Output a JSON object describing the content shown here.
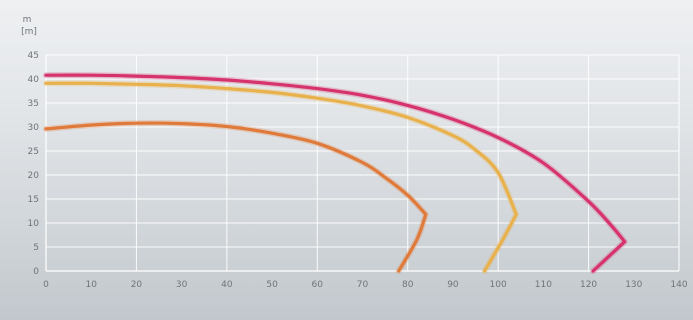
{
  "chart_data": {
    "type": "line",
    "title": "",
    "y_axis_label_top": "m",
    "y_axis_unit": "[m]",
    "x_tick_labels": [
      "0",
      "10",
      "20",
      "30",
      "40",
      "50",
      "60",
      "70",
      "80",
      "90",
      "100",
      "110",
      "120",
      "130",
      "140"
    ],
    "y_tick_labels": [
      "0",
      "5",
      "10",
      "15",
      "20",
      "25",
      "30",
      "35",
      "40",
      "45"
    ],
    "xlim": [
      0,
      140
    ],
    "ylim": [
      0,
      45
    ],
    "grid": true,
    "series": [
      {
        "color": "#d6336c",
        "x": [
          0,
          10,
          20,
          30,
          40,
          50,
          60,
          70,
          80,
          90,
          100,
          110,
          120,
          125,
          128,
          125,
          121
        ],
        "y": [
          40.8,
          40.8,
          40.6,
          40.3,
          39.8,
          39.0,
          38.0,
          36.6,
          34.5,
          31.6,
          27.8,
          22.5,
          14.5,
          9.5,
          6.1,
          3.5,
          0
        ]
      },
      {
        "color": "#e9b14c",
        "x": [
          0,
          10,
          20,
          30,
          40,
          50,
          60,
          70,
          80,
          90,
          95,
          100,
          104,
          101,
          97
        ],
        "y": [
          39.1,
          39.1,
          38.9,
          38.6,
          38.0,
          37.2,
          36.0,
          34.4,
          32.0,
          28.2,
          25.2,
          20.5,
          11.8,
          6.5,
          0
        ]
      },
      {
        "color": "#e07a3a",
        "x": [
          0,
          10,
          20,
          30,
          40,
          50,
          60,
          70,
          75,
          80,
          84,
          82,
          78
        ],
        "y": [
          29.6,
          30.4,
          30.8,
          30.7,
          30.1,
          28.7,
          26.6,
          22.6,
          19.5,
          15.8,
          11.8,
          6.5,
          0
        ]
      }
    ]
  }
}
